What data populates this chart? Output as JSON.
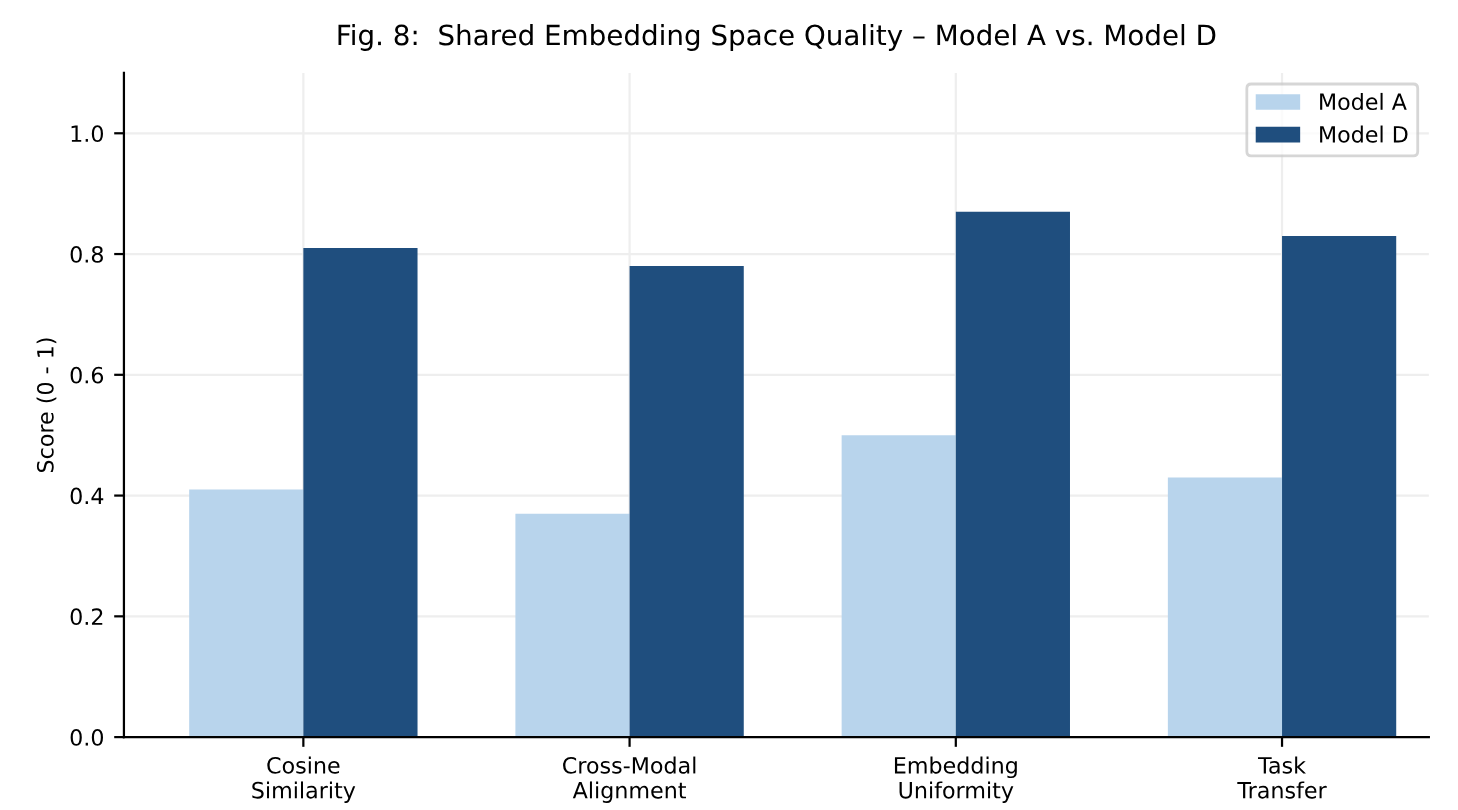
{
  "chart_data": {
    "type": "bar",
    "title": "Fig. 8:  Shared Embedding Space Quality – Model A vs. Model D",
    "ylabel": "Score (0 - 1)",
    "categories": [
      "Cosine\nSimilarity",
      "Cross-Modal\nAlignment",
      "Embedding\nUniformity",
      "Task\nTransfer"
    ],
    "series": [
      {
        "name": "Model A",
        "color": "#b8d4ec",
        "values": [
          0.41,
          0.37,
          0.5,
          0.43
        ]
      },
      {
        "name": "Model D",
        "color": "#1f4e7e",
        "values": [
          0.81,
          0.78,
          0.87,
          0.83
        ]
      }
    ],
    "ylim": [
      0,
      1.1
    ],
    "yticks": [
      {
        "value": 0,
        "label": "0.0"
      },
      0.2,
      0.4,
      0.6,
      0.8,
      {
        "value": 1,
        "label": "1.0"
      }
    ],
    "grid": true,
    "legend": "top right"
  }
}
